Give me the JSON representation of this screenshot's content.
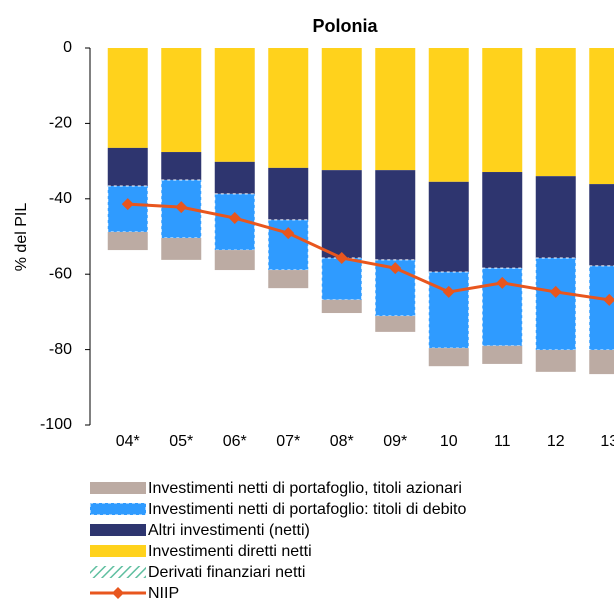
{
  "chart_data": {
    "type": "stacked-bar-line",
    "title": "Polonia",
    "y_label": "% del PIL",
    "categories": [
      "04*",
      "05*",
      "06*",
      "07*",
      "08*",
      "09*",
      "10",
      "11",
      "12",
      "13"
    ],
    "ylim": [
      -100,
      0
    ],
    "yticks": [
      0,
      -20,
      -40,
      -60,
      -80,
      -100
    ],
    "series": [
      {
        "name": "Investimenti netti di portafoglio, titoli azionari",
        "color": "#bcaba3",
        "kind": "bar",
        "values": [
          -4.8,
          -5.8,
          -5.3,
          -4.8,
          -3.5,
          -4.2,
          -4.8,
          -4.8,
          -5.8,
          -6.4
        ]
      },
      {
        "name": "Investimenti netti di portafoglio: titoli di debito",
        "color": "#2f9bff",
        "kind": "bar",
        "values": [
          -12.2,
          -15.4,
          -14.9,
          -13.3,
          -11.1,
          -14.9,
          -20.2,
          -20.6,
          -24.4,
          -22.3
        ]
      },
      {
        "name": "Altri investimenti (netti)",
        "color": "#2e356f",
        "kind": "bar",
        "values": [
          -10.1,
          -7.4,
          -8.5,
          -13.8,
          -23.3,
          -23.8,
          -23.9,
          -25.5,
          -21.7,
          -21.7
        ]
      },
      {
        "name": "Investimenti diretti netti",
        "color": "#ffd21c",
        "kind": "bar",
        "values": [
          -26.5,
          -27.6,
          -30.2,
          -31.8,
          -32.4,
          -32.4,
          -35.5,
          -32.9,
          -34.0,
          -36.1
        ]
      },
      {
        "name": "Derivati finanziari netti",
        "color": "#5fbfa0",
        "kind": "bar",
        "values": [
          0,
          0,
          0,
          0,
          0,
          0,
          0,
          0,
          0,
          0
        ]
      },
      {
        "name": "NIIP",
        "color": "#e8561e",
        "kind": "line",
        "values": [
          -41.4,
          -42.2,
          -45.1,
          -49.1,
          -55.7,
          -58.4,
          -64.7,
          -62.3,
          -64.7,
          -66.8
        ]
      }
    ]
  }
}
